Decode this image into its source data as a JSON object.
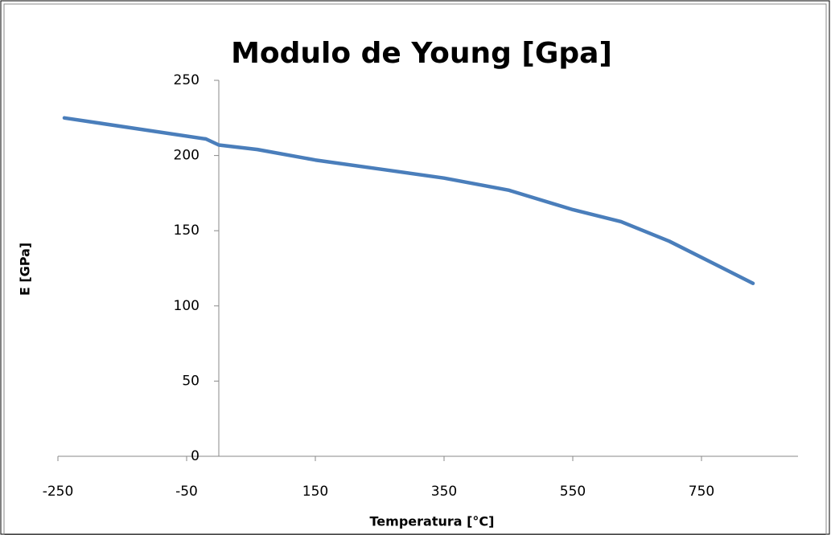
{
  "chart_data": {
    "type": "line",
    "title": "Modulo de Young [Gpa]",
    "x_label": "Temperatura [°C]",
    "y_label": "E [GPa]",
    "x": [
      -240,
      -20,
      0,
      60,
      150,
      250,
      350,
      450,
      550,
      625,
      700,
      830
    ],
    "series": [
      {
        "name": "E",
        "color": "#4a7ebb",
        "values": [
          225,
          211,
          207,
          204,
          197,
          191,
          185,
          177,
          164,
          156,
          143,
          115
        ]
      }
    ],
    "xlim": [
      -250,
      900
    ],
    "xticks": [
      -250,
      -50,
      150,
      350,
      550,
      750
    ],
    "ylim": [
      0,
      250
    ],
    "yticks": [
      0,
      50,
      100,
      150,
      200,
      250
    ],
    "grid": false
  }
}
